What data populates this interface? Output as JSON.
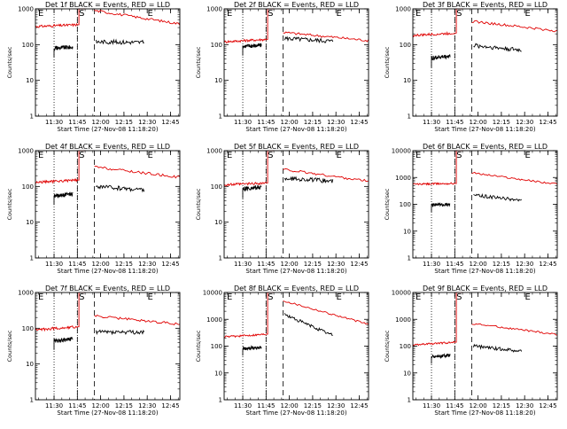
{
  "figure": {
    "ylabel": "Counts/sec",
    "xlabel": "Start Time (27-Nov-08 11:18:20)",
    "marker_labels": [
      "E",
      "S",
      "E"
    ],
    "colors": {
      "events": "#000000",
      "lld": "#e00000",
      "background": "#ffffff"
    }
  },
  "chart_data": [
    {
      "type": "line",
      "title": "Det 1f BLACK = Events, RED = LLD",
      "xlabel": "Start Time (27-Nov-08 11:18:20)",
      "ylabel": "Counts/sec",
      "yscale": "log",
      "ylim": [
        1,
        1000
      ],
      "yticks": [
        "1",
        "10",
        "100",
        "1000"
      ],
      "xticks": [
        "11:30",
        "11:45",
        "12:00",
        "12:15",
        "12:30",
        "12:45"
      ],
      "xlim_min": [
        0,
        93
      ],
      "dotted_min": [
        12,
        27
      ],
      "dashed_min": [
        27,
        38
      ],
      "spike_min": [
        28,
        32
      ],
      "series": [
        {
          "key": "lld",
          "segments": [
            {
              "x": [
                0,
                27
              ],
              "y": [
                320,
                360
              ]
            },
            {
              "x": [
                38,
                93
              ],
              "y": [
                900,
                380
              ]
            }
          ]
        },
        {
          "key": "events",
          "segments": [
            {
              "x": [
                12,
                24
              ],
              "y": [
                80,
                85
              ]
            },
            {
              "x": [
                39,
                70
              ],
              "y": [
                120,
                115
              ]
            }
          ]
        }
      ]
    },
    {
      "type": "line",
      "title": "Det 2f BLACK = Events, RED = LLD",
      "xlabel": "Start Time (27-Nov-08 11:18:20)",
      "ylabel": "Counts/sec",
      "yscale": "log",
      "ylim": [
        1,
        1000
      ],
      "yticks": [
        "1",
        "10",
        "100",
        "1000"
      ],
      "xticks": [
        "11:30",
        "11:45",
        "12:00",
        "12:15",
        "12:30",
        "12:45"
      ],
      "xlim_min": [
        0,
        93
      ],
      "dotted_min": [
        12,
        27
      ],
      "dashed_min": [
        27,
        38
      ],
      "spike_min": [
        28,
        32
      ],
      "series": [
        {
          "key": "lld",
          "segments": [
            {
              "x": [
                0,
                27
              ],
              "y": [
                120,
                140
              ]
            },
            {
              "x": [
                38,
                93
              ],
              "y": [
                220,
                130
              ]
            }
          ]
        },
        {
          "key": "events",
          "segments": [
            {
              "x": [
                12,
                24
              ],
              "y": [
                90,
                95
              ]
            },
            {
              "x": [
                39,
                70
              ],
              "y": [
                150,
                125
              ]
            }
          ]
        }
      ]
    },
    {
      "type": "line",
      "title": "Det 3f BLACK = Events, RED = LLD",
      "xlabel": "Start Time (27-Nov-08 11:18:20)",
      "ylabel": "Counts/sec",
      "yscale": "log",
      "ylim": [
        1,
        1000
      ],
      "yticks": [
        "1",
        "10",
        "100",
        "1000"
      ],
      "xticks": [
        "11:30",
        "11:45",
        "12:00",
        "12:15",
        "12:30",
        "12:45"
      ],
      "xlim_min": [
        0,
        93
      ],
      "dotted_min": [
        12,
        27
      ],
      "dashed_min": [
        27,
        38
      ],
      "spike_min": [
        28,
        32
      ],
      "series": [
        {
          "key": "lld",
          "segments": [
            {
              "x": [
                0,
                27
              ],
              "y": [
                180,
                210
              ]
            },
            {
              "x": [
                38,
                93
              ],
              "y": [
                450,
                240
              ]
            }
          ]
        },
        {
          "key": "events",
          "segments": [
            {
              "x": [
                12,
                24
              ],
              "y": [
                42,
                48
              ]
            },
            {
              "x": [
                39,
                70
              ],
              "y": [
                95,
                70
              ]
            }
          ]
        }
      ]
    },
    {
      "type": "line",
      "title": "Det 4f BLACK = Events, RED = LLD",
      "xlabel": "Start Time (27-Nov-08 11:18:20)",
      "ylabel": "Counts/sec",
      "yscale": "log",
      "ylim": [
        1,
        1000
      ],
      "yticks": [
        "1",
        "10",
        "100",
        "1000"
      ],
      "xticks": [
        "11:30",
        "11:45",
        "12:00",
        "12:15",
        "12:30",
        "12:45"
      ],
      "xlim_min": [
        0,
        93
      ],
      "dotted_min": [
        12,
        27
      ],
      "dashed_min": [
        27,
        38
      ],
      "spike_min": [
        28,
        32
      ],
      "series": [
        {
          "key": "lld",
          "segments": [
            {
              "x": [
                0,
                27
              ],
              "y": [
                130,
                150
              ]
            },
            {
              "x": [
                38,
                93
              ],
              "y": [
                350,
                180
              ]
            }
          ]
        },
        {
          "key": "events",
          "segments": [
            {
              "x": [
                12,
                24
              ],
              "y": [
                55,
                60
              ]
            },
            {
              "x": [
                39,
                70
              ],
              "y": [
                100,
                80
              ]
            }
          ]
        }
      ]
    },
    {
      "type": "line",
      "title": "Det 5f BLACK = Events, RED = LLD",
      "xlabel": "Start Time (27-Nov-08 11:18:20)",
      "ylabel": "Counts/sec",
      "yscale": "log",
      "ylim": [
        1,
        1000
      ],
      "yticks": [
        "1",
        "10",
        "100",
        "1000"
      ],
      "xticks": [
        "11:30",
        "11:45",
        "12:00",
        "12:15",
        "12:30",
        "12:45"
      ],
      "xlim_min": [
        0,
        93
      ],
      "dotted_min": [
        12,
        27
      ],
      "dashed_min": [
        27,
        38
      ],
      "spike_min": [
        28,
        32
      ],
      "series": [
        {
          "key": "lld",
          "segments": [
            {
              "x": [
                0,
                27
              ],
              "y": [
                110,
                125
              ]
            },
            {
              "x": [
                38,
                93
              ],
              "y": [
                300,
                140
              ]
            }
          ]
        },
        {
          "key": "events",
          "segments": [
            {
              "x": [
                12,
                24
              ],
              "y": [
                85,
                95
              ]
            },
            {
              "x": [
                39,
                70
              ],
              "y": [
                170,
                140
              ]
            }
          ]
        }
      ]
    },
    {
      "type": "line",
      "title": "Det 6f BLACK = Events, RED = LLD",
      "xlabel": "Start Time (27-Nov-08 11:18:20)",
      "ylabel": "Counts/sec",
      "yscale": "log",
      "ylim": [
        1,
        10000
      ],
      "yticks": [
        "1",
        "10",
        "100",
        "1000",
        "10000"
      ],
      "xticks": [
        "11:30",
        "11:45",
        "12:00",
        "12:15",
        "12:30",
        "12:45"
      ],
      "xlim_min": [
        0,
        93
      ],
      "dotted_min": [
        12,
        27
      ],
      "dashed_min": [
        27,
        38
      ],
      "spike_min": [
        28,
        32
      ],
      "series": [
        {
          "key": "lld",
          "segments": [
            {
              "x": [
                0,
                27
              ],
              "y": [
                560,
                600
              ]
            },
            {
              "x": [
                38,
                93
              ],
              "y": [
                1500,
                560
              ]
            }
          ]
        },
        {
          "key": "events",
          "segments": [
            {
              "x": [
                12,
                24
              ],
              "y": [
                95,
                100
              ]
            },
            {
              "x": [
                39,
                70
              ],
              "y": [
                220,
                140
              ]
            }
          ]
        }
      ]
    },
    {
      "type": "line",
      "title": "Det 7f BLACK = Events, RED = LLD",
      "xlabel": "Start Time (27-Nov-08 11:18:20)",
      "ylabel": "Counts/sec",
      "yscale": "log",
      "ylim": [
        1,
        1000
      ],
      "yticks": [
        "1",
        "10",
        "100",
        "1000"
      ],
      "xticks": [
        "11:30",
        "11:45",
        "12:00",
        "12:15",
        "12:30",
        "12:45"
      ],
      "xlim_min": [
        0,
        93
      ],
      "dotted_min": [
        12,
        27
      ],
      "dashed_min": [
        27,
        38
      ],
      "spike_min": [
        28,
        32
      ],
      "series": [
        {
          "key": "lld",
          "segments": [
            {
              "x": [
                0,
                27
              ],
              "y": [
                90,
                110
              ]
            },
            {
              "x": [
                38,
                93
              ],
              "y": [
                220,
                130
              ]
            }
          ]
        },
        {
          "key": "events",
          "segments": [
            {
              "x": [
                12,
                24
              ],
              "y": [
                45,
                50
              ]
            },
            {
              "x": [
                39,
                70
              ],
              "y": [
                80,
                75
              ]
            }
          ]
        }
      ]
    },
    {
      "type": "line",
      "title": "Det 8f BLACK = Events, RED = LLD",
      "xlabel": "Start Time (27-Nov-08 11:18:20)",
      "ylabel": "Counts/sec",
      "yscale": "log",
      "ylim": [
        1,
        10000
      ],
      "yticks": [
        "1",
        "10",
        "100",
        "1000",
        "10000"
      ],
      "xticks": [
        "11:30",
        "11:45",
        "12:00",
        "12:15",
        "12:30",
        "12:45"
      ],
      "xlim_min": [
        0,
        93
      ],
      "dotted_min": [
        12,
        27
      ],
      "dashed_min": [
        27,
        38
      ],
      "spike_min": [
        28,
        32
      ],
      "series": [
        {
          "key": "lld",
          "segments": [
            {
              "x": [
                0,
                27
              ],
              "y": [
                220,
                280
              ]
            },
            {
              "x": [
                38,
                93
              ],
              "y": [
                5000,
                650
              ]
            }
          ]
        },
        {
          "key": "events",
          "segments": [
            {
              "x": [
                12,
                24
              ],
              "y": [
                80,
                90
              ]
            },
            {
              "x": [
                39,
                70
              ],
              "y": [
                1500,
                250
              ]
            }
          ]
        }
      ]
    },
    {
      "type": "line",
      "title": "Det 9f BLACK = Events, RED = LLD",
      "xlabel": "Start Time (27-Nov-08 11:18:20)",
      "ylabel": "Counts/sec",
      "yscale": "log",
      "ylim": [
        1,
        10000
      ],
      "yticks": [
        "1",
        "10",
        "100",
        "1000",
        "10000"
      ],
      "xticks": [
        "11:30",
        "11:45",
        "12:00",
        "12:15",
        "12:30",
        "12:45"
      ],
      "xlim_min": [
        0,
        93
      ],
      "dotted_min": [
        12,
        27
      ],
      "dashed_min": [
        27,
        38
      ],
      "spike_min": [
        28,
        32
      ],
      "series": [
        {
          "key": "lld",
          "segments": [
            {
              "x": [
                0,
                27
              ],
              "y": [
                110,
                140
              ]
            },
            {
              "x": [
                38,
                93
              ],
              "y": [
                700,
                270
              ]
            }
          ]
        },
        {
          "key": "events",
          "segments": [
            {
              "x": [
                12,
                24
              ],
              "y": [
                40,
                45
              ]
            },
            {
              "x": [
                39,
                70
              ],
              "y": [
                100,
                65
              ]
            }
          ]
        }
      ]
    }
  ]
}
